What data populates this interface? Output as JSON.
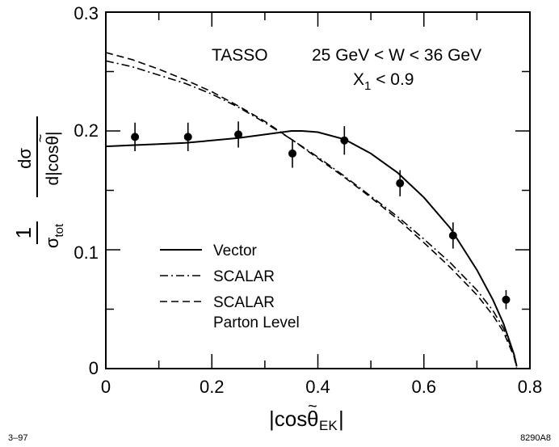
{
  "chart_data": {
    "type": "scatter",
    "experiment": "TASSO",
    "energy_range": "25 GeV < W < 36 GeV",
    "cut": {
      "symbol": "X",
      "subscript": "1",
      "rest": " < 0.9"
    },
    "xlabel": "|cosθ̃EK|",
    "ylabel": "(1/σtot) dσ/d|cosθ̃|",
    "xlim": [
      0,
      0.8
    ],
    "ylim": [
      0,
      0.3
    ],
    "xticks": [
      0,
      0.2,
      0.4,
      0.6,
      0.8
    ],
    "xtick_labels": [
      "0",
      "0.2",
      "0.4",
      "0.6",
      "0.8"
    ],
    "yticks": [
      0,
      0.1,
      0.2,
      0.3
    ],
    "ytick_labels": [
      "0",
      "0.1",
      "0.2",
      "0.3"
    ],
    "data_points": {
      "name": "TASSO data",
      "x": [
        0.055,
        0.155,
        0.25,
        0.352,
        0.45,
        0.555,
        0.655,
        0.755
      ],
      "y": [
        0.195,
        0.195,
        0.197,
        0.181,
        0.192,
        0.156,
        0.112,
        0.058
      ],
      "err": [
        0.012,
        0.012,
        0.011,
        0.012,
        0.012,
        0.011,
        0.011,
        0.008
      ]
    },
    "series": [
      {
        "name": "Vector",
        "style": "solid",
        "x": [
          0,
          0.05,
          0.1,
          0.15,
          0.2,
          0.25,
          0.3,
          0.35,
          0.37,
          0.4,
          0.45,
          0.5,
          0.55,
          0.6,
          0.65,
          0.7,
          0.73,
          0.75,
          0.77,
          0.775
        ],
        "y": [
          0.187,
          0.188,
          0.189,
          0.19,
          0.192,
          0.194,
          0.197,
          0.2,
          0.2,
          0.199,
          0.193,
          0.181,
          0.165,
          0.144,
          0.118,
          0.083,
          0.058,
          0.038,
          0.012,
          0.002
        ]
      },
      {
        "name": "SCALAR",
        "style": "dashdot",
        "x": [
          0,
          0.05,
          0.1,
          0.15,
          0.2,
          0.25,
          0.3,
          0.35,
          0.4,
          0.45,
          0.5,
          0.55,
          0.6,
          0.65,
          0.7,
          0.73,
          0.75,
          0.77,
          0.775
        ],
        "y": [
          0.259,
          0.254,
          0.247,
          0.24,
          0.231,
          0.22,
          0.207,
          0.193,
          0.178,
          0.162,
          0.145,
          0.128,
          0.109,
          0.089,
          0.066,
          0.049,
          0.034,
          0.012,
          0.002
        ]
      },
      {
        "name": "SCALAR\nParton Level",
        "style": "dashed",
        "x": [
          0,
          0.05,
          0.1,
          0.15,
          0.2,
          0.25,
          0.3,
          0.35,
          0.4,
          0.45,
          0.5,
          0.55,
          0.6,
          0.65,
          0.7,
          0.73,
          0.75,
          0.77,
          0.775
        ],
        "y": [
          0.266,
          0.26,
          0.252,
          0.243,
          0.233,
          0.221,
          0.208,
          0.193,
          0.177,
          0.161,
          0.144,
          0.126,
          0.106,
          0.085,
          0.062,
          0.045,
          0.031,
          0.01,
          0.001
        ]
      }
    ],
    "legend": [
      "Vector",
      "SCALAR",
      "SCALAR",
      "Parton Level"
    ]
  },
  "footer": {
    "left": "3–97",
    "right": "8290A8"
  }
}
